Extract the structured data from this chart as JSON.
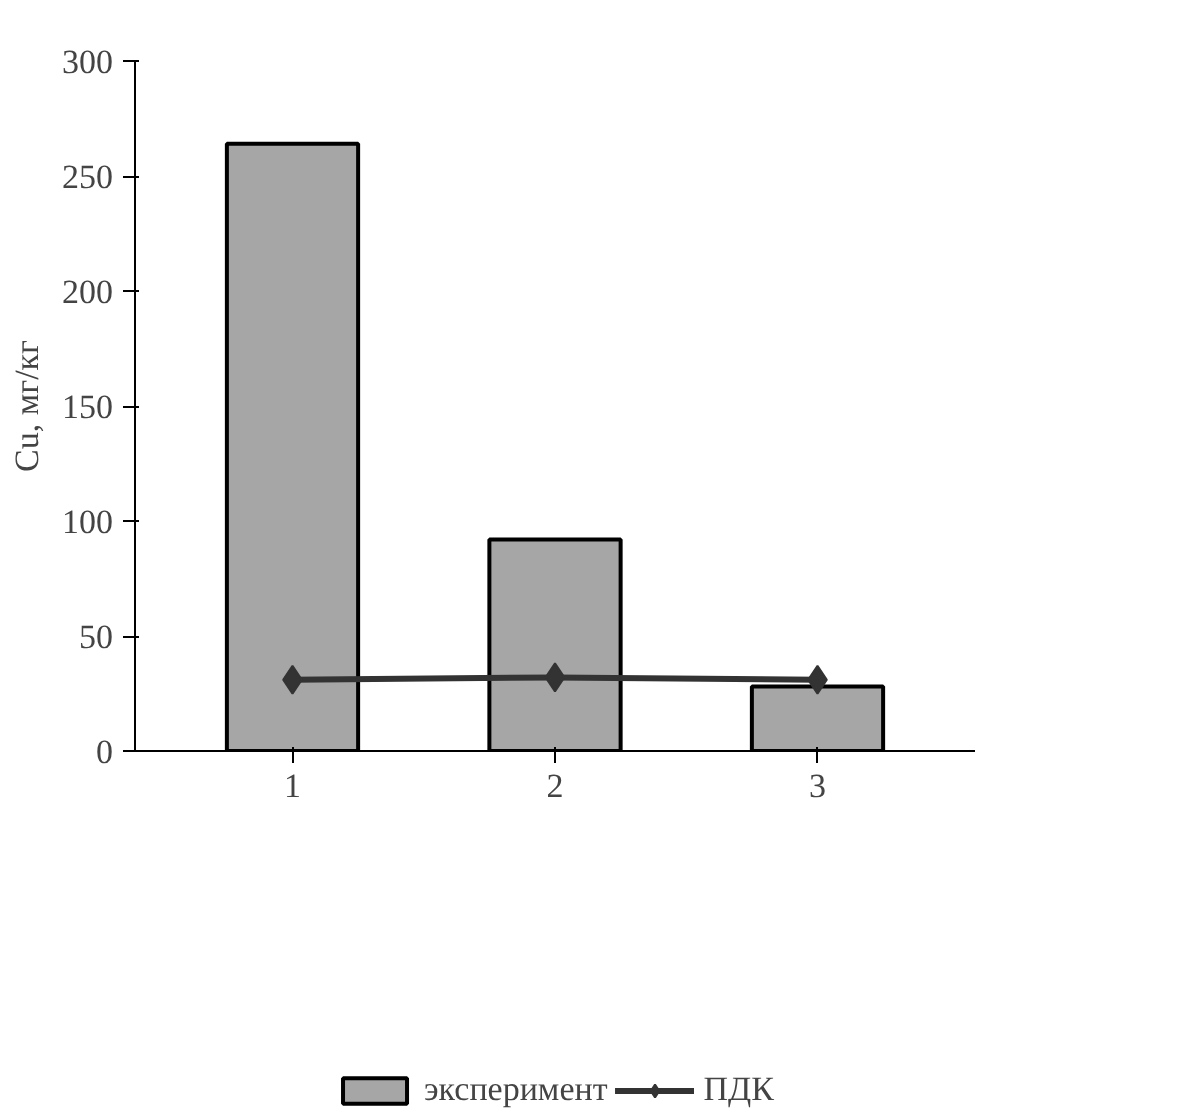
{
  "chart_data": {
    "type": "bar",
    "ylabel": "Cu, мг/кг",
    "categories": [
      "1",
      "2",
      "3"
    ],
    "series": [
      {
        "name": "эксперимент",
        "color": "#a6a6a6",
        "values": [
          264,
          92,
          28
        ]
      },
      {
        "name": "ПДК",
        "type": "line",
        "color": "#333333",
        "marker": "diamond",
        "values": [
          31,
          32,
          31
        ]
      }
    ],
    "ylim": [
      0,
      300
    ],
    "yticks": [
      0,
      50,
      100,
      150,
      200,
      250,
      300
    ],
    "grid": false,
    "legend": "bottom"
  }
}
